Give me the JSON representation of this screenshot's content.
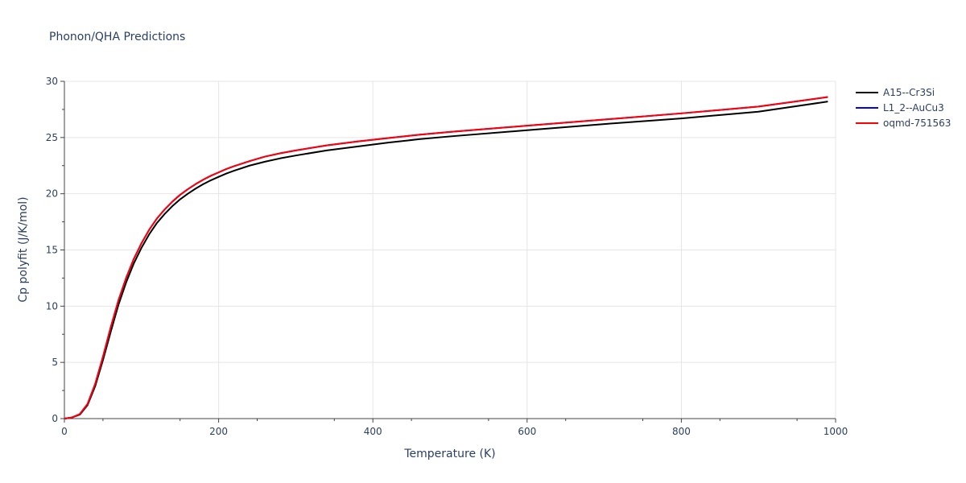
{
  "chart_data": {
    "type": "line",
    "title": "Phonon/QHA Predictions",
    "xlabel": "Temperature (K)",
    "ylabel": "Cp polyfit (J/K/mol)",
    "xlim": [
      0,
      1000
    ],
    "ylim": [
      0,
      30
    ],
    "x_ticks": [
      0,
      200,
      400,
      600,
      800,
      1000
    ],
    "y_ticks": [
      0,
      5,
      10,
      15,
      20,
      25,
      30
    ],
    "grid": true,
    "legend_position": "top-right",
    "series": [
      {
        "name": "A15--Cr3Si",
        "color": "#000000",
        "x": [
          0,
          10,
          20,
          30,
          40,
          50,
          60,
          70,
          80,
          90,
          100,
          110,
          120,
          130,
          140,
          150,
          160,
          170,
          180,
          190,
          200,
          210,
          220,
          240,
          260,
          280,
          300,
          340,
          380,
          420,
          460,
          500,
          600,
          700,
          800,
          900,
          990
        ],
        "y": [
          0,
          0.1,
          0.35,
          1.2,
          2.9,
          5.2,
          7.7,
          10.1,
          12.1,
          13.8,
          15.2,
          16.4,
          17.4,
          18.2,
          18.9,
          19.5,
          20.0,
          20.45,
          20.85,
          21.2,
          21.5,
          21.8,
          22.05,
          22.5,
          22.85,
          23.15,
          23.4,
          23.85,
          24.2,
          24.55,
          24.85,
          25.1,
          25.65,
          26.2,
          26.7,
          27.3,
          28.2
        ]
      },
      {
        "name": "L1_2--AuCu3",
        "color": "#0000ff",
        "x": [
          0,
          10,
          20,
          30,
          40,
          50,
          60,
          70,
          80,
          90,
          100,
          110,
          120,
          130,
          140,
          150,
          160,
          170,
          180,
          190,
          200,
          210,
          220,
          240,
          260,
          280,
          300,
          340,
          380,
          420,
          460,
          500,
          600,
          700,
          800,
          900,
          990
        ],
        "y": [
          0,
          0.1,
          0.4,
          1.3,
          3.1,
          5.5,
          8.1,
          10.5,
          12.5,
          14.2,
          15.6,
          16.8,
          17.8,
          18.6,
          19.3,
          19.9,
          20.4,
          20.85,
          21.25,
          21.6,
          21.9,
          22.2,
          22.45,
          22.9,
          23.3,
          23.6,
          23.85,
          24.3,
          24.65,
          24.95,
          25.25,
          25.5,
          26.05,
          26.6,
          27.15,
          27.75,
          28.6
        ]
      },
      {
        "name": "oqmd-751563",
        "color": "#ff0000",
        "x": [
          0,
          10,
          20,
          30,
          40,
          50,
          60,
          70,
          80,
          90,
          100,
          110,
          120,
          130,
          140,
          150,
          160,
          170,
          180,
          190,
          200,
          210,
          220,
          240,
          260,
          280,
          300,
          340,
          380,
          420,
          460,
          500,
          600,
          700,
          800,
          900,
          990
        ],
        "y": [
          0,
          0.1,
          0.4,
          1.3,
          3.1,
          5.5,
          8.1,
          10.5,
          12.5,
          14.2,
          15.6,
          16.8,
          17.8,
          18.6,
          19.3,
          19.9,
          20.4,
          20.85,
          21.25,
          21.6,
          21.9,
          22.2,
          22.45,
          22.9,
          23.3,
          23.6,
          23.85,
          24.3,
          24.65,
          24.95,
          25.25,
          25.5,
          26.05,
          26.6,
          27.15,
          27.75,
          28.6
        ]
      }
    ]
  }
}
